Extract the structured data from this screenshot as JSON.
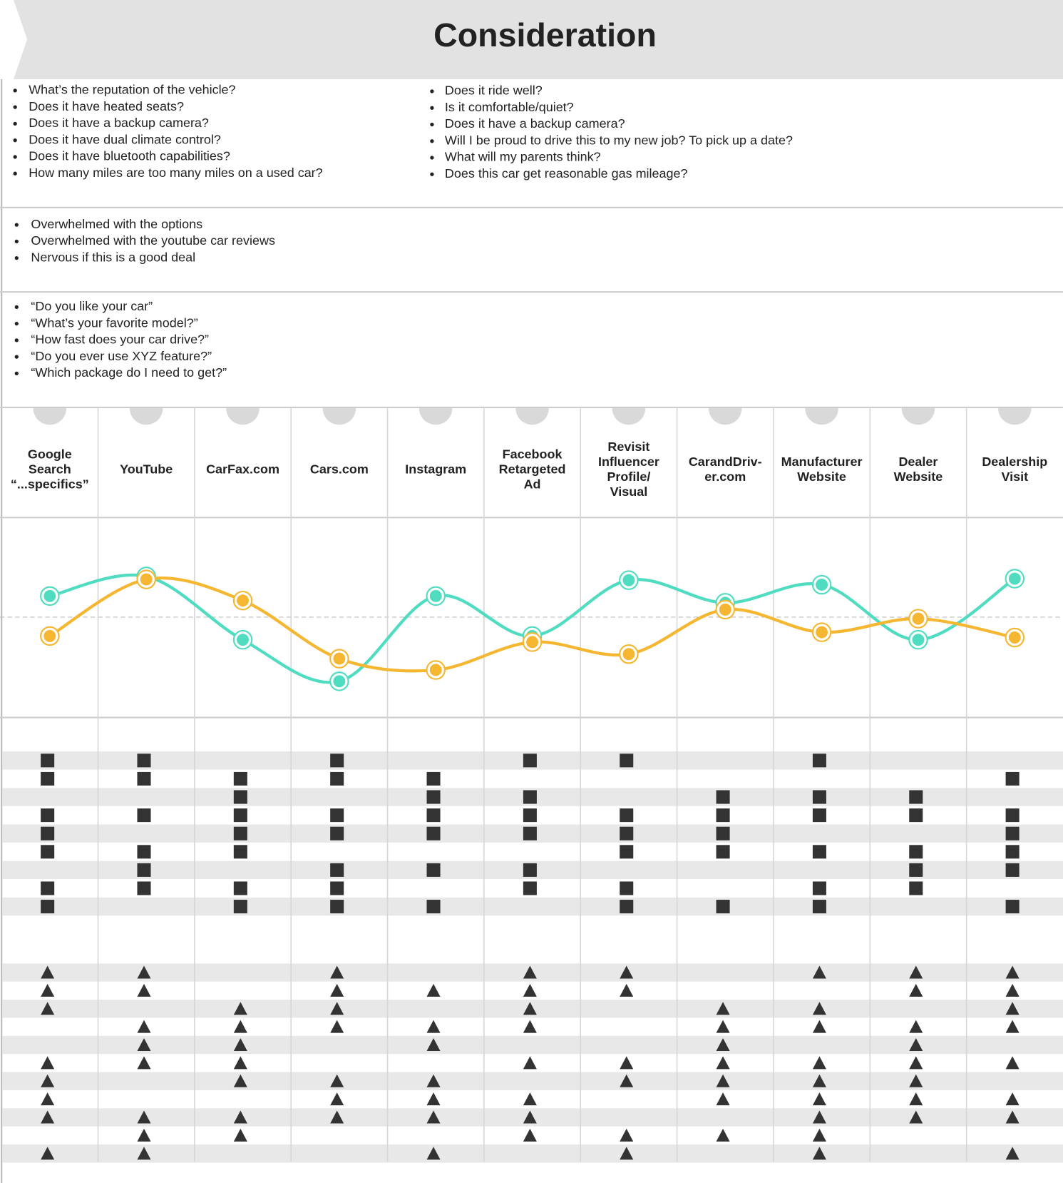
{
  "header": {
    "title": "Consideration"
  },
  "questions": {
    "left": [
      "What’s the reputation of the vehicle?",
      "Does it have heated seats?",
      "Does it have a backup camera?",
      "Does it have dual climate control?",
      "Does it have bluetooth capabilities?",
      "How many miles are too many miles on a used car?"
    ],
    "right": [
      "Does it ride well?",
      "Is it comfortable/quiet?",
      "Does it have a backup camera?",
      "Will I be proud to drive this to my new job? To pick up a date?",
      "What will my parents think?",
      "Does this car get reasonable gas mileage?"
    ]
  },
  "feelings": [
    "Overwhelmed with the options",
    "Overwhelmed with the youtube car reviews",
    "Nervous if this is a good deal"
  ],
  "quotes": [
    "“Do you like your car”",
    "“What’s your favorite model?”",
    "“How fast does your car drive?”",
    "“Do you ever use XYZ feature?”",
    "“Which package do I need to get?”"
  ],
  "channels": [
    [
      "Google",
      "Search",
      "“...specifics”"
    ],
    [
      "YouTube"
    ],
    [
      "CarFax.com"
    ],
    [
      "Cars.com"
    ],
    [
      "Instagram"
    ],
    [
      "Facebook",
      "Retargeted",
      "Ad"
    ],
    [
      "Revisit",
      "Influencer",
      "Profile/",
      "Visual"
    ],
    [
      "CarandDriv-",
      "er.com"
    ],
    [
      "Manufacturer",
      "Website"
    ],
    [
      "Dealer",
      "Website"
    ],
    [
      "Dealership",
      "Visit"
    ]
  ],
  "emotion_lines": [
    {
      "color": "#4fdcc0",
      "values": [
        28,
        54,
        -30,
        -85,
        28,
        -25,
        49,
        19,
        43,
        -30,
        51
      ]
    },
    {
      "color": "#f5b731",
      "values": [
        -25,
        50,
        22,
        -55,
        -70,
        -33,
        -49,
        10,
        -20,
        -2,
        -27
      ]
    }
  ],
  "squares": [
    [
      0,
      1,
      3,
      5,
      6,
      8
    ],
    [
      0,
      1,
      2,
      3,
      4,
      10
    ],
    [
      2,
      4,
      5,
      7,
      8,
      9
    ],
    [
      0,
      1,
      2,
      3,
      4,
      5,
      6,
      7,
      8,
      9,
      10
    ],
    [
      0,
      2,
      3,
      4,
      5,
      6,
      7,
      10
    ],
    [
      0,
      1,
      2,
      6,
      7,
      8,
      9,
      10
    ],
    [
      1,
      3,
      4,
      5,
      9,
      10
    ],
    [
      0,
      1,
      2,
      3,
      5,
      6,
      8,
      9
    ],
    [
      0,
      2,
      3,
      4,
      6,
      7,
      8,
      10
    ]
  ],
  "triangles": [
    [
      0,
      1,
      3,
      5,
      6,
      8,
      9,
      10
    ],
    [
      0,
      1,
      3,
      4,
      5,
      6,
      9,
      10
    ],
    [
      0,
      2,
      3,
      5,
      7,
      8,
      10
    ],
    [
      1,
      2,
      3,
      4,
      5,
      7,
      8,
      9,
      10
    ],
    [
      1,
      2,
      4,
      7,
      9
    ],
    [
      0,
      1,
      2,
      5,
      6,
      7,
      8,
      9,
      10
    ],
    [
      0,
      2,
      3,
      4,
      6,
      7,
      8,
      9
    ],
    [
      0,
      3,
      4,
      5,
      7,
      8,
      9,
      10
    ],
    [
      0,
      1,
      2,
      3,
      4,
      5,
      8,
      9,
      10
    ],
    [
      1,
      2,
      5,
      6,
      7,
      8
    ],
    [
      0,
      1,
      4,
      6,
      8,
      10
    ]
  ]
}
